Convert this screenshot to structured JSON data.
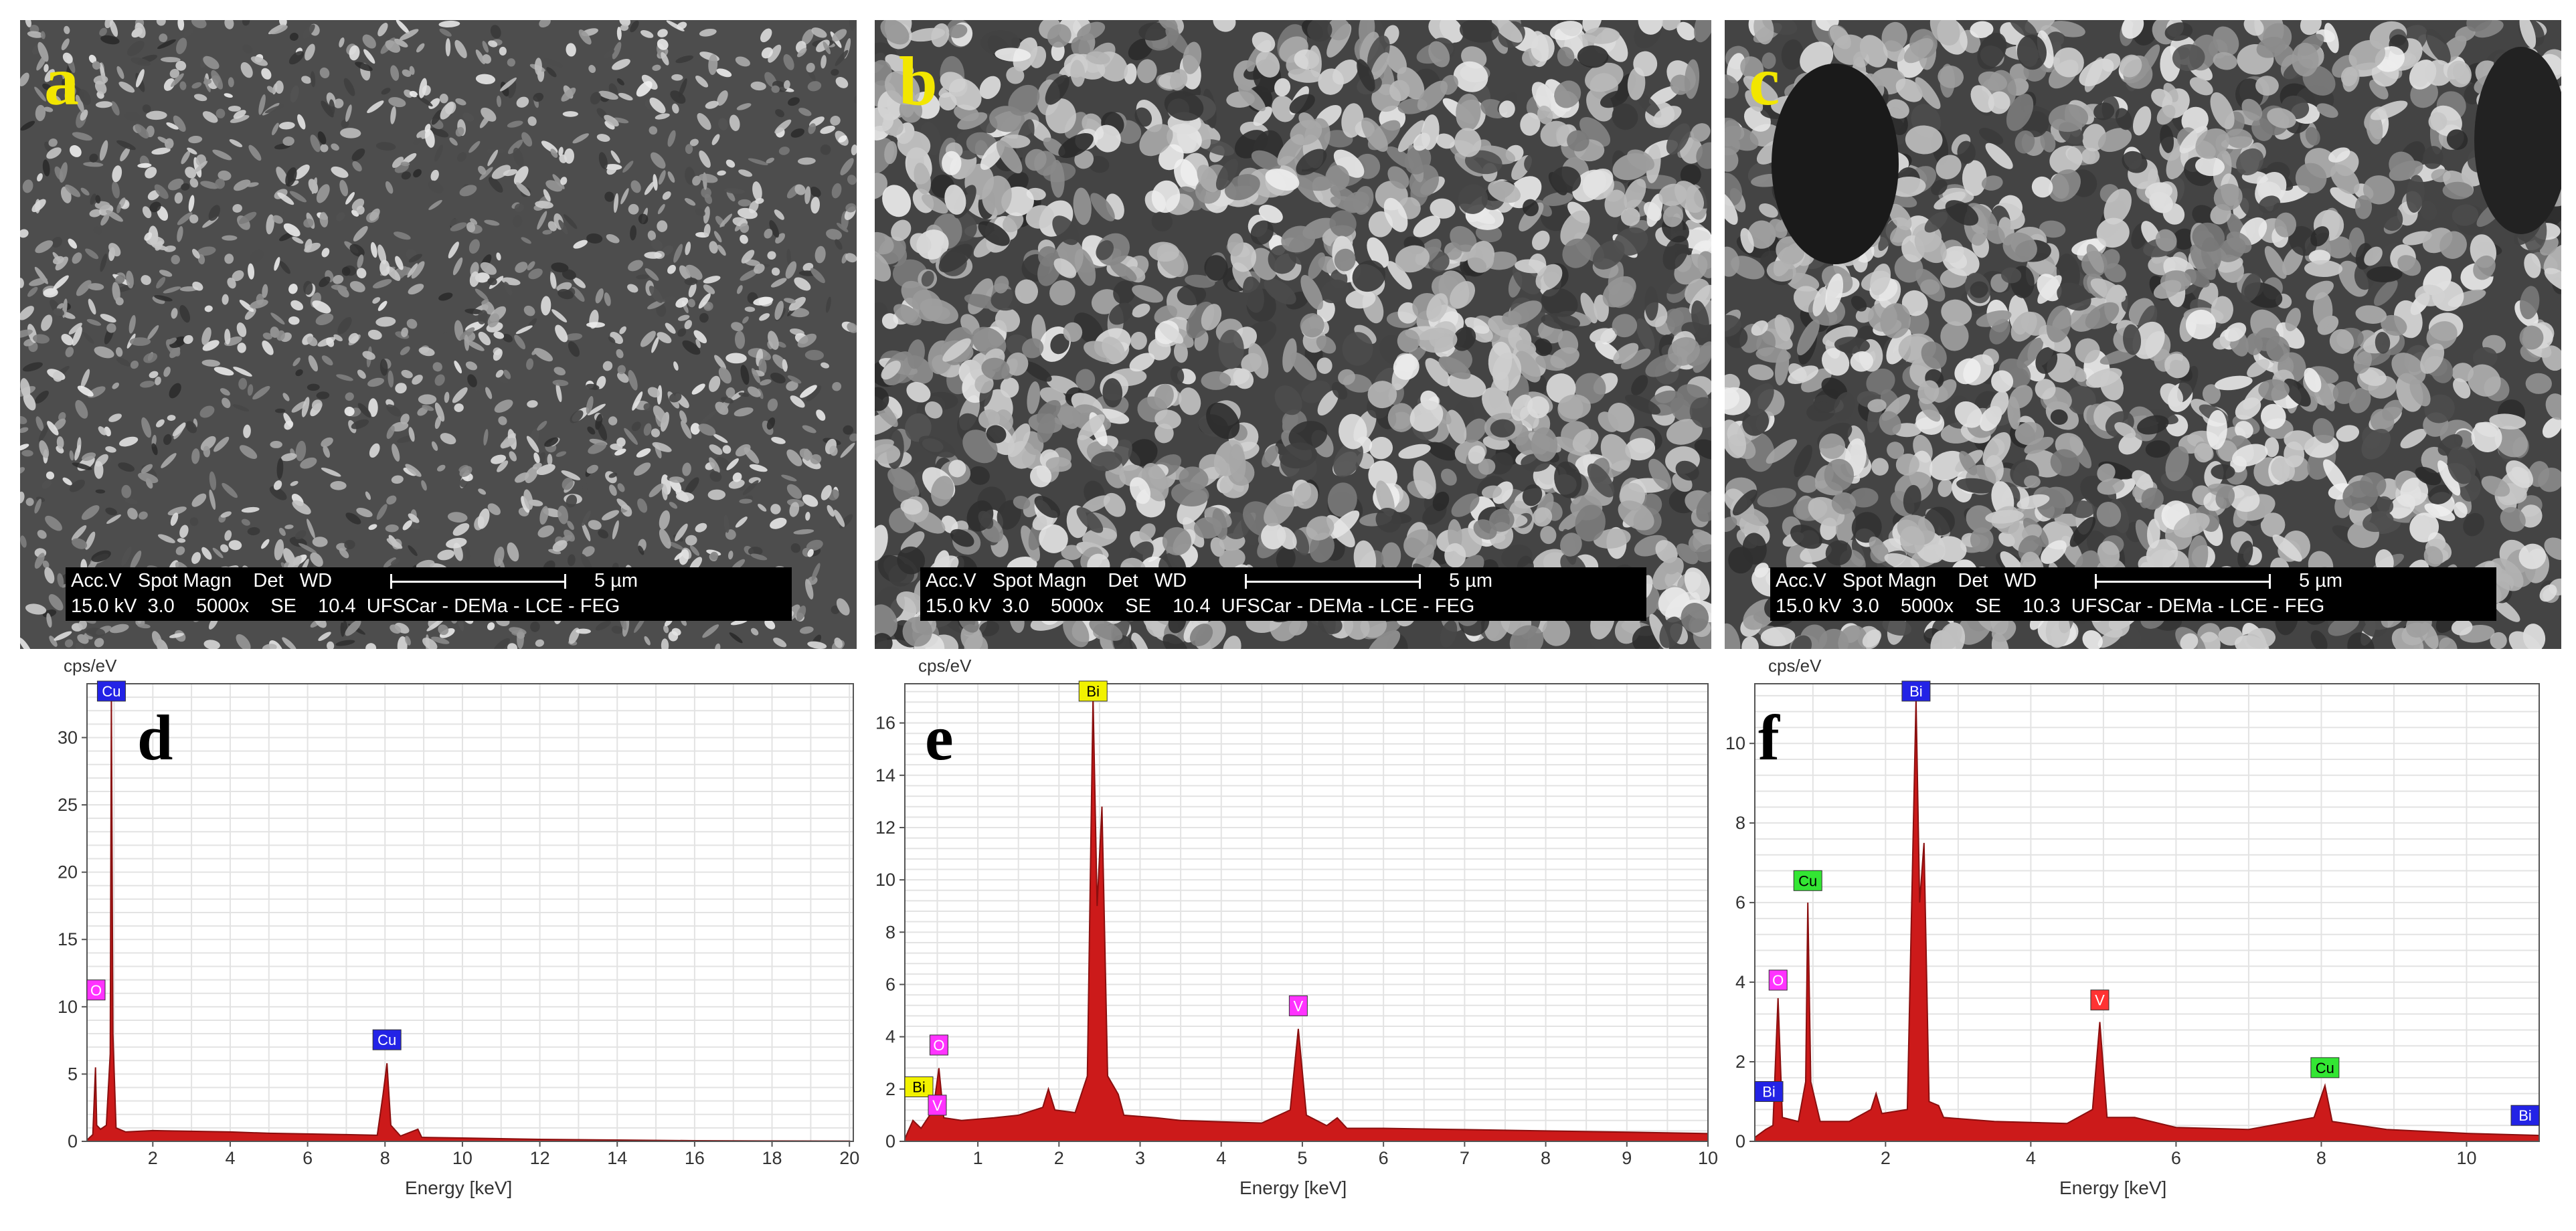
{
  "figure": {
    "sem_panels": [
      {
        "letter": "a",
        "databar": {
          "row1": "Acc.V   Spot Magn    Det   WD",
          "scale": "5 µm",
          "row2": "15.0 kV  3.0    5000x    SE    10.4  UFSCar - DEMa - LCE - FEG"
        }
      },
      {
        "letter": "b",
        "databar": {
          "row1": "Acc.V   Spot Magn    Det   WD",
          "scale": "5 µm",
          "row2": "15.0 kV  3.0    5000x    SE    10.4  UFSCar - DEMa - LCE - FEG"
        }
      },
      {
        "letter": "c",
        "databar": {
          "row1": "Acc.V   Spot Magn    Det   WD",
          "scale": "5 µm",
          "row2": "15.0 kV  3.0    5000x    SE    10.3  UFSCar - DEMa - LCE - FEG"
        }
      }
    ]
  },
  "chart_data": [
    {
      "panel": "d",
      "type": "line",
      "ylabel": "cps/eV",
      "xlabel": "Energy [keV]",
      "xlim": [
        0.3,
        20.1
      ],
      "ylim": [
        0,
        34
      ],
      "xticks": [
        2,
        4,
        6,
        8,
        10,
        12,
        14,
        16,
        18,
        20
      ],
      "yticks": [
        0,
        5,
        10,
        15,
        20,
        25,
        30
      ],
      "grid": true,
      "fill_color": "#cc1a1a",
      "spectrum": [
        [
          0.3,
          0.1
        ],
        [
          0.45,
          0.5
        ],
        [
          0.52,
          5.5
        ],
        [
          0.55,
          1.2
        ],
        [
          0.65,
          0.9
        ],
        [
          0.8,
          1.2
        ],
        [
          0.9,
          6.5
        ],
        [
          0.93,
          33.0
        ],
        [
          0.97,
          8.0
        ],
        [
          1.05,
          1.0
        ],
        [
          1.3,
          0.7
        ],
        [
          2,
          0.8
        ],
        [
          3,
          0.75
        ],
        [
          4,
          0.7
        ],
        [
          5,
          0.6
        ],
        [
          6,
          0.55
        ],
        [
          7,
          0.5
        ],
        [
          7.8,
          0.45
        ],
        [
          7.95,
          3.5
        ],
        [
          8.05,
          5.8
        ],
        [
          8.15,
          1.2
        ],
        [
          8.4,
          0.4
        ],
        [
          8.85,
          0.9
        ],
        [
          8.95,
          0.3
        ],
        [
          10,
          0.25
        ],
        [
          12,
          0.15
        ],
        [
          14,
          0.1
        ],
        [
          16,
          0.05
        ],
        [
          18,
          0.03
        ],
        [
          20,
          0.02
        ]
      ],
      "peak_labels": [
        {
          "text": "Cu",
          "x": 0.93,
          "y": 33.0,
          "color": "#2323e6"
        },
        {
          "text": "O",
          "x": 0.52,
          "y": 10.5,
          "color": "#ff33ff"
        },
        {
          "text": "Cu",
          "x": 8.05,
          "y": 6.8,
          "color": "#2323e6"
        }
      ]
    },
    {
      "panel": "e",
      "type": "line",
      "ylabel": "cps/eV",
      "xlabel": "Energy [keV]",
      "xlim": [
        0.1,
        10.0
      ],
      "ylim": [
        0,
        17.5
      ],
      "xticks": [
        1,
        2,
        3,
        4,
        5,
        6,
        7,
        8,
        9,
        10
      ],
      "yticks": [
        0,
        2,
        4,
        6,
        8,
        10,
        12,
        14,
        16
      ],
      "grid": true,
      "fill_color": "#cc1a1a",
      "spectrum": [
        [
          0.1,
          0.1
        ],
        [
          0.2,
          0.8
        ],
        [
          0.3,
          0.5
        ],
        [
          0.45,
          1.2
        ],
        [
          0.52,
          2.8
        ],
        [
          0.58,
          0.9
        ],
        [
          0.8,
          0.8
        ],
        [
          1.2,
          0.9
        ],
        [
          1.5,
          1.0
        ],
        [
          1.8,
          1.3
        ],
        [
          1.87,
          2.0
        ],
        [
          1.95,
          1.2
        ],
        [
          2.2,
          1.1
        ],
        [
          2.35,
          2.5
        ],
        [
          2.42,
          17.0
        ],
        [
          2.47,
          9.0
        ],
        [
          2.53,
          12.8
        ],
        [
          2.6,
          2.5
        ],
        [
          2.73,
          1.8
        ],
        [
          2.8,
          1.0
        ],
        [
          3.2,
          0.9
        ],
        [
          3.5,
          0.8
        ],
        [
          4.0,
          0.75
        ],
        [
          4.5,
          0.7
        ],
        [
          4.85,
          1.2
        ],
        [
          4.95,
          4.3
        ],
        [
          5.05,
          1.0
        ],
        [
          5.3,
          0.6
        ],
        [
          5.43,
          0.9
        ],
        [
          5.55,
          0.5
        ],
        [
          6,
          0.5
        ],
        [
          7,
          0.45
        ],
        [
          8,
          0.4
        ],
        [
          9,
          0.35
        ],
        [
          10,
          0.3
        ]
      ],
      "peak_labels": [
        {
          "text": "Bi",
          "x": 2.42,
          "y": 17.0,
          "color": "#f2f200"
        },
        {
          "text": "V",
          "x": 4.95,
          "y": 4.8,
          "color": "#ff33ff"
        },
        {
          "text": "O",
          "x": 0.52,
          "y": 3.3,
          "color": "#ff33ff"
        },
        {
          "text": "Bi",
          "x": 0.2,
          "y": 1.7,
          "color": "#f2f200"
        },
        {
          "text": "V",
          "x": 0.5,
          "y": 1.0,
          "color": "#ff33ff"
        }
      ]
    },
    {
      "panel": "f",
      "type": "line",
      "ylabel": "cps/eV",
      "xlabel": "Energy [keV]",
      "xlim": [
        0.2,
        11.0
      ],
      "ylim": [
        0,
        11.5
      ],
      "xticks": [
        2,
        4,
        6,
        8,
        10
      ],
      "yticks": [
        0,
        2,
        4,
        6,
        8,
        10
      ],
      "grid": true,
      "fill_color": "#cc1a1a",
      "spectrum": [
        [
          0.2,
          0.1
        ],
        [
          0.35,
          0.3
        ],
        [
          0.45,
          0.4
        ],
        [
          0.52,
          3.6
        ],
        [
          0.58,
          0.6
        ],
        [
          0.8,
          0.5
        ],
        [
          0.9,
          1.5
        ],
        [
          0.93,
          6.0
        ],
        [
          0.97,
          1.5
        ],
        [
          1.1,
          0.5
        ],
        [
          1.5,
          0.5
        ],
        [
          1.8,
          0.8
        ],
        [
          1.87,
          1.2
        ],
        [
          1.95,
          0.7
        ],
        [
          2.3,
          0.8
        ],
        [
          2.42,
          11.1
        ],
        [
          2.47,
          6.0
        ],
        [
          2.53,
          7.5
        ],
        [
          2.6,
          1.0
        ],
        [
          2.73,
          0.9
        ],
        [
          2.8,
          0.6
        ],
        [
          3.5,
          0.5
        ],
        [
          4.5,
          0.45
        ],
        [
          4.85,
          0.8
        ],
        [
          4.95,
          3.0
        ],
        [
          5.05,
          0.6
        ],
        [
          5.43,
          0.6
        ],
        [
          6,
          0.35
        ],
        [
          7,
          0.3
        ],
        [
          7.9,
          0.6
        ],
        [
          8.05,
          1.4
        ],
        [
          8.15,
          0.5
        ],
        [
          8.9,
          0.3
        ],
        [
          10,
          0.2
        ],
        [
          11,
          0.15
        ]
      ],
      "peak_labels": [
        {
          "text": "Bi",
          "x": 2.42,
          "y": 11.1,
          "color": "#2323e6"
        },
        {
          "text": "Cu",
          "x": 0.93,
          "y": 6.3,
          "color": "#33e633"
        },
        {
          "text": "O",
          "x": 0.52,
          "y": 3.8,
          "color": "#ff33ff"
        },
        {
          "text": "V",
          "x": 4.95,
          "y": 3.3,
          "color": "#ff3333"
        },
        {
          "text": "Cu",
          "x": 8.05,
          "y": 1.6,
          "color": "#33e633"
        },
        {
          "text": "Bi",
          "x": 0.3,
          "y": 1.0,
          "color": "#2323e6"
        },
        {
          "text": "Bi",
          "x": 10.9,
          "y": 0.4,
          "color": "#2323e6"
        }
      ]
    }
  ]
}
